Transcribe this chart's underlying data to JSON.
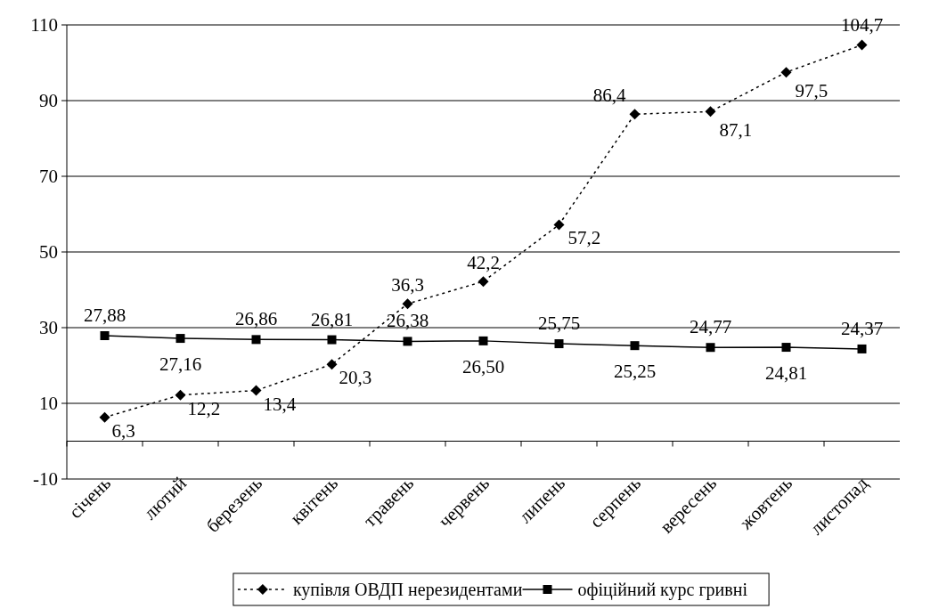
{
  "chart_data": {
    "type": "line",
    "categories": [
      "січень",
      "лютий",
      "березень",
      "квітень",
      "травень",
      "червень",
      "липень",
      "серпень",
      "вересень",
      "жовтень",
      "листопад"
    ],
    "series": [
      {
        "name": "купівля ОВДП нерезидентами",
        "color": "#000000",
        "line_style": "dotted",
        "marker": "diamond",
        "values": [
          6.3,
          12.2,
          13.4,
          20.3,
          36.3,
          42.2,
          57.2,
          86.4,
          87.1,
          97.5,
          104.7
        ],
        "value_labels": [
          "6,3",
          "12,2",
          "13,4",
          "20,3",
          "36,3",
          "42,2",
          "57,2",
          "86,4",
          "87,1",
          "97,5",
          "104,7"
        ]
      },
      {
        "name": "офіційний курс гривні",
        "color": "#000000",
        "line_style": "solid",
        "marker": "square",
        "values": [
          27.88,
          27.16,
          26.86,
          26.81,
          26.38,
          26.5,
          25.75,
          25.25,
          24.77,
          24.81,
          24.37
        ],
        "value_labels": [
          "27,88",
          "27,16",
          "26,86",
          "26,81",
          "26,38",
          "26,50",
          "25,75",
          "25,25",
          "24,77",
          "24,81",
          "24,37"
        ]
      }
    ],
    "ylim": [
      -10,
      110
    ],
    "yticks": [
      -10,
      10,
      30,
      50,
      70,
      90,
      110
    ],
    "grid": "y",
    "legend": "bottom"
  }
}
